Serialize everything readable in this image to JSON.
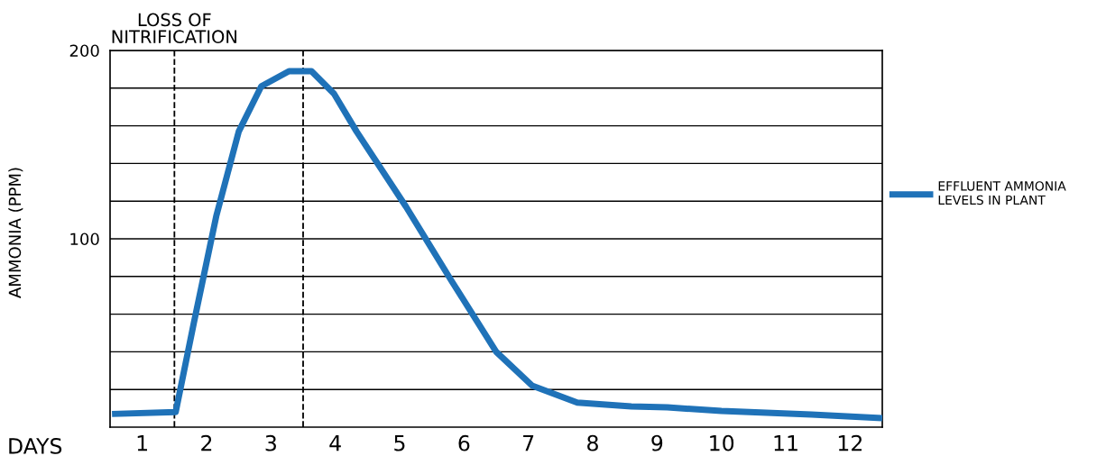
{
  "chart_data": {
    "type": "line",
    "xlabel": "DAYS",
    "ylabel": "AMMONIA (PPM)",
    "x": [
      0.53,
      1.52,
      1.8,
      2.15,
      2.5,
      2.85,
      3.28,
      3.63,
      3.98,
      4.33,
      5.1,
      5.8,
      6.5,
      7.06,
      7.76,
      8.6,
      9.16,
      10.0,
      11.4,
      12.5
    ],
    "series": [
      {
        "name": "EFFLUENT AMMONIA LEVELS IN PLANT",
        "color": "#1f72b8",
        "values": [
          7,
          8,
          55,
          112,
          157,
          181,
          189,
          189,
          177,
          157,
          117,
          78,
          40,
          22,
          13,
          11,
          10.5,
          8.6,
          6.7,
          4.8
        ]
      }
    ],
    "xlim": [
      0.5,
      12.5
    ],
    "xticks": [
      1,
      2,
      3,
      4,
      5,
      6,
      7,
      8,
      9,
      10,
      11,
      12
    ],
    "ylim": [
      0,
      200
    ],
    "yticks": [
      {
        "value": 20,
        "label": null
      },
      {
        "value": 40,
        "label": null
      },
      {
        "value": 60,
        "label": null
      },
      {
        "value": 80,
        "label": null
      },
      100,
      {
        "value": 120,
        "label": null
      },
      {
        "value": 140,
        "label": null
      },
      {
        "value": 160,
        "label": null
      },
      {
        "value": 180,
        "label": null
      },
      200
    ],
    "ref_lines": [
      {
        "axis": "x",
        "value": 1.5,
        "label": "LOSS OF\nNITRIFICATION",
        "color": "#000000",
        "line_style": "dashed"
      },
      {
        "axis": "x",
        "value": 3.5,
        "color": "#000000",
        "line_style": "dashed"
      }
    ],
    "grid": "y",
    "legend": "right",
    "line_style": "solid",
    "marker": "none"
  }
}
